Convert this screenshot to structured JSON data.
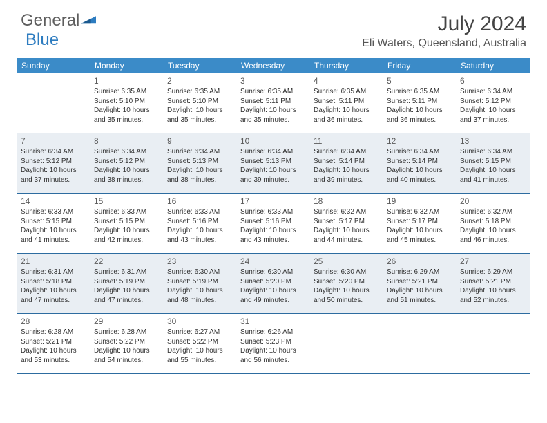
{
  "brand": {
    "part1": "General",
    "part2": "Blue"
  },
  "title": "July 2024",
  "location": "Eli Waters, Queensland, Australia",
  "colors": {
    "headerBg": "#3b8bc8",
    "borderColor": "#2d6ca0",
    "shadeBg": "#e9eef3",
    "textColor": "#333333",
    "logoGray": "#5e5e5e",
    "logoBlue": "#2d7cc0"
  },
  "dayNames": [
    "Sunday",
    "Monday",
    "Tuesday",
    "Wednesday",
    "Thursday",
    "Friday",
    "Saturday"
  ],
  "weeks": [
    [
      {
        "n": "",
        "sr": "",
        "ss": "",
        "dl1": "",
        "dl2": ""
      },
      {
        "n": "1",
        "sr": "Sunrise: 6:35 AM",
        "ss": "Sunset: 5:10 PM",
        "dl1": "Daylight: 10 hours",
        "dl2": "and 35 minutes."
      },
      {
        "n": "2",
        "sr": "Sunrise: 6:35 AM",
        "ss": "Sunset: 5:10 PM",
        "dl1": "Daylight: 10 hours",
        "dl2": "and 35 minutes."
      },
      {
        "n": "3",
        "sr": "Sunrise: 6:35 AM",
        "ss": "Sunset: 5:11 PM",
        "dl1": "Daylight: 10 hours",
        "dl2": "and 35 minutes."
      },
      {
        "n": "4",
        "sr": "Sunrise: 6:35 AM",
        "ss": "Sunset: 5:11 PM",
        "dl1": "Daylight: 10 hours",
        "dl2": "and 36 minutes."
      },
      {
        "n": "5",
        "sr": "Sunrise: 6:35 AM",
        "ss": "Sunset: 5:11 PM",
        "dl1": "Daylight: 10 hours",
        "dl2": "and 36 minutes."
      },
      {
        "n": "6",
        "sr": "Sunrise: 6:34 AM",
        "ss": "Sunset: 5:12 PM",
        "dl1": "Daylight: 10 hours",
        "dl2": "and 37 minutes."
      }
    ],
    [
      {
        "n": "7",
        "sr": "Sunrise: 6:34 AM",
        "ss": "Sunset: 5:12 PM",
        "dl1": "Daylight: 10 hours",
        "dl2": "and 37 minutes."
      },
      {
        "n": "8",
        "sr": "Sunrise: 6:34 AM",
        "ss": "Sunset: 5:12 PM",
        "dl1": "Daylight: 10 hours",
        "dl2": "and 38 minutes."
      },
      {
        "n": "9",
        "sr": "Sunrise: 6:34 AM",
        "ss": "Sunset: 5:13 PM",
        "dl1": "Daylight: 10 hours",
        "dl2": "and 38 minutes."
      },
      {
        "n": "10",
        "sr": "Sunrise: 6:34 AM",
        "ss": "Sunset: 5:13 PM",
        "dl1": "Daylight: 10 hours",
        "dl2": "and 39 minutes."
      },
      {
        "n": "11",
        "sr": "Sunrise: 6:34 AM",
        "ss": "Sunset: 5:14 PM",
        "dl1": "Daylight: 10 hours",
        "dl2": "and 39 minutes."
      },
      {
        "n": "12",
        "sr": "Sunrise: 6:34 AM",
        "ss": "Sunset: 5:14 PM",
        "dl1": "Daylight: 10 hours",
        "dl2": "and 40 minutes."
      },
      {
        "n": "13",
        "sr": "Sunrise: 6:34 AM",
        "ss": "Sunset: 5:15 PM",
        "dl1": "Daylight: 10 hours",
        "dl2": "and 41 minutes."
      }
    ],
    [
      {
        "n": "14",
        "sr": "Sunrise: 6:33 AM",
        "ss": "Sunset: 5:15 PM",
        "dl1": "Daylight: 10 hours",
        "dl2": "and 41 minutes."
      },
      {
        "n": "15",
        "sr": "Sunrise: 6:33 AM",
        "ss": "Sunset: 5:15 PM",
        "dl1": "Daylight: 10 hours",
        "dl2": "and 42 minutes."
      },
      {
        "n": "16",
        "sr": "Sunrise: 6:33 AM",
        "ss": "Sunset: 5:16 PM",
        "dl1": "Daylight: 10 hours",
        "dl2": "and 43 minutes."
      },
      {
        "n": "17",
        "sr": "Sunrise: 6:33 AM",
        "ss": "Sunset: 5:16 PM",
        "dl1": "Daylight: 10 hours",
        "dl2": "and 43 minutes."
      },
      {
        "n": "18",
        "sr": "Sunrise: 6:32 AM",
        "ss": "Sunset: 5:17 PM",
        "dl1": "Daylight: 10 hours",
        "dl2": "and 44 minutes."
      },
      {
        "n": "19",
        "sr": "Sunrise: 6:32 AM",
        "ss": "Sunset: 5:17 PM",
        "dl1": "Daylight: 10 hours",
        "dl2": "and 45 minutes."
      },
      {
        "n": "20",
        "sr": "Sunrise: 6:32 AM",
        "ss": "Sunset: 5:18 PM",
        "dl1": "Daylight: 10 hours",
        "dl2": "and 46 minutes."
      }
    ],
    [
      {
        "n": "21",
        "sr": "Sunrise: 6:31 AM",
        "ss": "Sunset: 5:18 PM",
        "dl1": "Daylight: 10 hours",
        "dl2": "and 47 minutes."
      },
      {
        "n": "22",
        "sr": "Sunrise: 6:31 AM",
        "ss": "Sunset: 5:19 PM",
        "dl1": "Daylight: 10 hours",
        "dl2": "and 47 minutes."
      },
      {
        "n": "23",
        "sr": "Sunrise: 6:30 AM",
        "ss": "Sunset: 5:19 PM",
        "dl1": "Daylight: 10 hours",
        "dl2": "and 48 minutes."
      },
      {
        "n": "24",
        "sr": "Sunrise: 6:30 AM",
        "ss": "Sunset: 5:20 PM",
        "dl1": "Daylight: 10 hours",
        "dl2": "and 49 minutes."
      },
      {
        "n": "25",
        "sr": "Sunrise: 6:30 AM",
        "ss": "Sunset: 5:20 PM",
        "dl1": "Daylight: 10 hours",
        "dl2": "and 50 minutes."
      },
      {
        "n": "26",
        "sr": "Sunrise: 6:29 AM",
        "ss": "Sunset: 5:21 PM",
        "dl1": "Daylight: 10 hours",
        "dl2": "and 51 minutes."
      },
      {
        "n": "27",
        "sr": "Sunrise: 6:29 AM",
        "ss": "Sunset: 5:21 PM",
        "dl1": "Daylight: 10 hours",
        "dl2": "and 52 minutes."
      }
    ],
    [
      {
        "n": "28",
        "sr": "Sunrise: 6:28 AM",
        "ss": "Sunset: 5:21 PM",
        "dl1": "Daylight: 10 hours",
        "dl2": "and 53 minutes."
      },
      {
        "n": "29",
        "sr": "Sunrise: 6:28 AM",
        "ss": "Sunset: 5:22 PM",
        "dl1": "Daylight: 10 hours",
        "dl2": "and 54 minutes."
      },
      {
        "n": "30",
        "sr": "Sunrise: 6:27 AM",
        "ss": "Sunset: 5:22 PM",
        "dl1": "Daylight: 10 hours",
        "dl2": "and 55 minutes."
      },
      {
        "n": "31",
        "sr": "Sunrise: 6:26 AM",
        "ss": "Sunset: 5:23 PM",
        "dl1": "Daylight: 10 hours",
        "dl2": "and 56 minutes."
      },
      {
        "n": "",
        "sr": "",
        "ss": "",
        "dl1": "",
        "dl2": ""
      },
      {
        "n": "",
        "sr": "",
        "ss": "",
        "dl1": "",
        "dl2": ""
      },
      {
        "n": "",
        "sr": "",
        "ss": "",
        "dl1": "",
        "dl2": ""
      }
    ]
  ]
}
